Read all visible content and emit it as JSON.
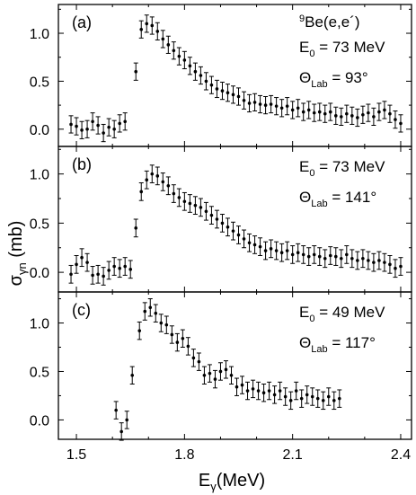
{
  "ylabel": {
    "main": "σ",
    "sub": "γn",
    "unit": " (mb)"
  },
  "xlabel": {
    "main": "E",
    "sub": "γ",
    "unit": "(MeV)"
  },
  "chart_data": [
    {
      "type": "scatter",
      "panel_label": "(a)",
      "annotations": {
        "reaction": {
          "sup": "9",
          "main": "Be(e,e´)"
        },
        "energy": {
          "main": "E",
          "sub": "0",
          "rest": " = 73 MeV"
        },
        "angle": {
          "main": "Θ",
          "sub": "Lab",
          "rest": " = 93°"
        }
      },
      "xlim": [
        1.45,
        2.43
      ],
      "ylim": [
        -0.18,
        1.3
      ],
      "xticks": [
        1.5,
        1.8,
        2.1,
        2.4
      ],
      "yticks": [
        0.0,
        0.5,
        1.0
      ],
      "ytick_labels": [
        "0.0",
        "0.5",
        "1.0"
      ],
      "err": 0.09,
      "points": [
        [
          1.485,
          0.05
        ],
        [
          1.5,
          0.03
        ],
        [
          1.515,
          -0.01
        ],
        [
          1.53,
          0.0
        ],
        [
          1.545,
          0.08
        ],
        [
          1.56,
          0.04
        ],
        [
          1.575,
          -0.04
        ],
        [
          1.59,
          0.02
        ],
        [
          1.605,
          0.0
        ],
        [
          1.62,
          0.06
        ],
        [
          1.635,
          0.08
        ],
        [
          1.665,
          0.6
        ],
        [
          1.68,
          1.04
        ],
        [
          1.695,
          1.1
        ],
        [
          1.71,
          1.08
        ],
        [
          1.725,
          1.02
        ],
        [
          1.74,
          0.94
        ],
        [
          1.755,
          0.88
        ],
        [
          1.77,
          0.82
        ],
        [
          1.785,
          0.76
        ],
        [
          1.8,
          0.72
        ],
        [
          1.815,
          0.66
        ],
        [
          1.83,
          0.6
        ],
        [
          1.845,
          0.56
        ],
        [
          1.86,
          0.5
        ],
        [
          1.875,
          0.46
        ],
        [
          1.89,
          0.42
        ],
        [
          1.905,
          0.4
        ],
        [
          1.92,
          0.38
        ],
        [
          1.935,
          0.36
        ],
        [
          1.95,
          0.34
        ],
        [
          1.965,
          0.3
        ],
        [
          1.98,
          0.27
        ],
        [
          1.995,
          0.28
        ],
        [
          2.01,
          0.26
        ],
        [
          2.025,
          0.25
        ],
        [
          2.04,
          0.26
        ],
        [
          2.055,
          0.24
        ],
        [
          2.07,
          0.22
        ],
        [
          2.085,
          0.24
        ],
        [
          2.1,
          0.2
        ],
        [
          2.115,
          0.22
        ],
        [
          2.13,
          0.18
        ],
        [
          2.145,
          0.2
        ],
        [
          2.16,
          0.17
        ],
        [
          2.175,
          0.18
        ],
        [
          2.19,
          0.16
        ],
        [
          2.205,
          0.18
        ],
        [
          2.22,
          0.14
        ],
        [
          2.235,
          0.13
        ],
        [
          2.25,
          0.16
        ],
        [
          2.265,
          0.14
        ],
        [
          2.28,
          0.12
        ],
        [
          2.295,
          0.15
        ],
        [
          2.31,
          0.17
        ],
        [
          2.325,
          0.13
        ],
        [
          2.34,
          0.18
        ],
        [
          2.355,
          0.2
        ],
        [
          2.37,
          0.16
        ],
        [
          2.385,
          0.1
        ],
        [
          2.4,
          0.06
        ]
      ]
    },
    {
      "type": "scatter",
      "panel_label": "(b)",
      "annotations": {
        "energy": {
          "main": "E",
          "sub": "0",
          "rest": " = 73 MeV"
        },
        "angle": {
          "main": "Θ",
          "sub": "Lab",
          "rest": " = 141°"
        }
      },
      "xlim": [
        1.45,
        2.43
      ],
      "ylim": [
        -0.2,
        1.28
      ],
      "xticks": [
        1.5,
        1.8,
        2.1,
        2.4
      ],
      "yticks": [
        0.0,
        0.5,
        1.0
      ],
      "ytick_labels": [
        "0.0",
        "0.5",
        "1.0"
      ],
      "err": 0.09,
      "points": [
        [
          1.485,
          -0.02
        ],
        [
          1.5,
          0.08
        ],
        [
          1.515,
          0.15
        ],
        [
          1.53,
          0.1
        ],
        [
          1.545,
          -0.03
        ],
        [
          1.56,
          -0.02
        ],
        [
          1.575,
          -0.04
        ],
        [
          1.59,
          0.02
        ],
        [
          1.605,
          0.06
        ],
        [
          1.62,
          0.04
        ],
        [
          1.635,
          0.06
        ],
        [
          1.65,
          0.03
        ],
        [
          1.665,
          0.45
        ],
        [
          1.68,
          0.82
        ],
        [
          1.695,
          0.94
        ],
        [
          1.71,
          1.0
        ],
        [
          1.725,
          0.98
        ],
        [
          1.74,
          0.92
        ],
        [
          1.755,
          0.88
        ],
        [
          1.77,
          0.8
        ],
        [
          1.785,
          0.76
        ],
        [
          1.8,
          0.72
        ],
        [
          1.815,
          0.7
        ],
        [
          1.83,
          0.68
        ],
        [
          1.845,
          0.66
        ],
        [
          1.86,
          0.62
        ],
        [
          1.875,
          0.58
        ],
        [
          1.89,
          0.54
        ],
        [
          1.905,
          0.5
        ],
        [
          1.92,
          0.46
        ],
        [
          1.935,
          0.42
        ],
        [
          1.95,
          0.38
        ],
        [
          1.965,
          0.34
        ],
        [
          1.98,
          0.3
        ],
        [
          1.995,
          0.28
        ],
        [
          2.01,
          0.26
        ],
        [
          2.025,
          0.22
        ],
        [
          2.04,
          0.24
        ],
        [
          2.055,
          0.22
        ],
        [
          2.07,
          0.2
        ],
        [
          2.085,
          0.22
        ],
        [
          2.1,
          0.18
        ],
        [
          2.115,
          0.2
        ],
        [
          2.13,
          0.18
        ],
        [
          2.145,
          0.16
        ],
        [
          2.16,
          0.18
        ],
        [
          2.175,
          0.16
        ],
        [
          2.19,
          0.14
        ],
        [
          2.205,
          0.17
        ],
        [
          2.22,
          0.16
        ],
        [
          2.235,
          0.14
        ],
        [
          2.25,
          0.18
        ],
        [
          2.265,
          0.14
        ],
        [
          2.28,
          0.12
        ],
        [
          2.295,
          0.14
        ],
        [
          2.31,
          0.12
        ],
        [
          2.325,
          0.1
        ],
        [
          2.34,
          0.12
        ],
        [
          2.355,
          0.1
        ],
        [
          2.37,
          0.08
        ],
        [
          2.385,
          0.04
        ],
        [
          2.4,
          0.06
        ]
      ]
    },
    {
      "type": "scatter",
      "panel_label": "(c)",
      "annotations": {
        "energy": {
          "main": "E",
          "sub": "0",
          "rest": " = 49 MeV"
        },
        "angle": {
          "main": "Θ",
          "sub": "Lab",
          "rest": " = 117°"
        }
      },
      "xlim": [
        1.45,
        2.43
      ],
      "ylim": [
        -0.2,
        1.32
      ],
      "xticks": [
        1.5,
        1.8,
        2.1,
        2.4
      ],
      "xtick_labels": [
        "1.5",
        "1.8",
        "2.1",
        "2.4"
      ],
      "yticks": [
        0.0,
        0.5,
        1.0
      ],
      "ytick_labels": [
        "0.0",
        "0.5",
        "1.0"
      ],
      "err": 0.09,
      "points": [
        [
          1.61,
          0.1
        ],
        [
          1.625,
          -0.12
        ],
        [
          1.64,
          0.0
        ],
        [
          1.655,
          0.46
        ],
        [
          1.675,
          0.92
        ],
        [
          1.69,
          1.12
        ],
        [
          1.705,
          1.16
        ],
        [
          1.72,
          1.1
        ],
        [
          1.735,
          1.0
        ],
        [
          1.75,
          0.98
        ],
        [
          1.765,
          0.88
        ],
        [
          1.78,
          0.8
        ],
        [
          1.795,
          0.84
        ],
        [
          1.81,
          0.76
        ],
        [
          1.825,
          0.64
        ],
        [
          1.84,
          0.6
        ],
        [
          1.855,
          0.46
        ],
        [
          1.87,
          0.48
        ],
        [
          1.885,
          0.42
        ],
        [
          1.9,
          0.5
        ],
        [
          1.915,
          0.52
        ],
        [
          1.93,
          0.46
        ],
        [
          1.945,
          0.34
        ],
        [
          1.96,
          0.36
        ],
        [
          1.975,
          0.3
        ],
        [
          1.99,
          0.32
        ],
        [
          2.005,
          0.3
        ],
        [
          2.02,
          0.28
        ],
        [
          2.035,
          0.3
        ],
        [
          2.05,
          0.26
        ],
        [
          2.065,
          0.3
        ],
        [
          2.08,
          0.24
        ],
        [
          2.095,
          0.2
        ],
        [
          2.11,
          0.3
        ],
        [
          2.125,
          0.22
        ],
        [
          2.14,
          0.26
        ],
        [
          2.155,
          0.24
        ],
        [
          2.17,
          0.22
        ],
        [
          2.185,
          0.2
        ],
        [
          2.2,
          0.24
        ],
        [
          2.215,
          0.2
        ],
        [
          2.23,
          0.22
        ]
      ]
    }
  ]
}
